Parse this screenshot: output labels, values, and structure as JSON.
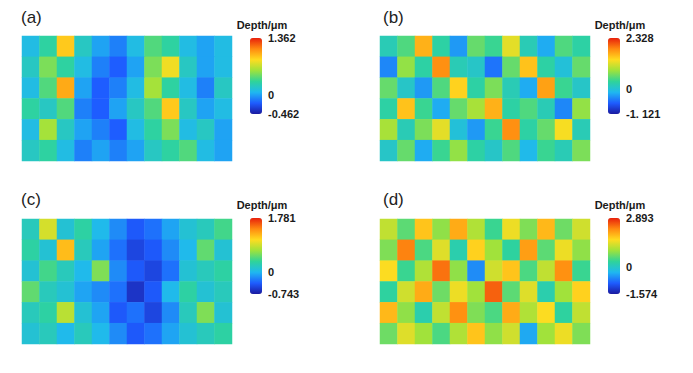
{
  "chart_data": [
    {
      "type": "heatmap",
      "title": "(a)",
      "tick_labels": false,
      "colorbar": {
        "title": "Depth/μm",
        "range": [
          -0.462,
          1.362
        ],
        "ticks": [
          -0.462,
          0,
          1.362
        ]
      },
      "cells": [
        [
          0.1,
          0.3,
          0.9,
          0.2,
          0.0,
          -0.1,
          0.1,
          0.4,
          0.3,
          0.1,
          0.0,
          0.1
        ],
        [
          0.2,
          0.5,
          0.3,
          0.1,
          -0.1,
          -0.2,
          0.0,
          0.5,
          0.8,
          0.2,
          0.0,
          0.1
        ],
        [
          0.1,
          0.4,
          1.0,
          0.0,
          -0.2,
          -0.1,
          0.1,
          0.6,
          0.3,
          0.1,
          -0.1,
          0.2
        ],
        [
          0.3,
          0.2,
          0.4,
          -0.1,
          -0.2,
          0.0,
          0.2,
          0.4,
          0.9,
          0.2,
          0.0,
          0.1
        ],
        [
          0.1,
          0.6,
          0.2,
          0.0,
          -0.1,
          -0.2,
          0.1,
          0.3,
          0.5,
          0.1,
          0.2,
          0.0
        ],
        [
          0.2,
          0.3,
          0.1,
          -0.1,
          0.0,
          -0.1,
          0.0,
          0.2,
          0.3,
          0.4,
          0.1,
          0.0
        ]
      ]
    },
    {
      "type": "heatmap",
      "title": "(b)",
      "tick_labels": false,
      "colorbar": {
        "title": "Depth/μm",
        "range": [
          -1.121,
          2.328
        ],
        "ticks": [
          {
            "value": -1.121,
            "label": "-1. 121"
          },
          0,
          2.328
        ]
      },
      "cells": [
        [
          0.2,
          0.5,
          1.6,
          0.3,
          -0.3,
          0.6,
          0.4,
          1.2,
          0.2,
          -0.2,
          0.5,
          0.3
        ],
        [
          -0.4,
          0.8,
          0.3,
          1.8,
          0.2,
          0.1,
          -0.5,
          0.6,
          1.5,
          0.3,
          0.0,
          0.6
        ],
        [
          0.6,
          0.1,
          -0.3,
          0.5,
          1.4,
          0.3,
          0.7,
          0.2,
          -0.2,
          1.7,
          0.4,
          0.1
        ],
        [
          0.3,
          1.5,
          0.4,
          -0.2,
          0.6,
          0.9,
          1.6,
          0.3,
          0.5,
          0.2,
          -0.4,
          0.8
        ],
        [
          0.9,
          0.2,
          0.7,
          1.2,
          0.0,
          -0.3,
          0.4,
          1.8,
          0.3,
          0.6,
          1.3,
          0.2
        ],
        [
          0.1,
          0.6,
          -0.2,
          0.4,
          0.8,
          0.3,
          0.1,
          0.5,
          -0.1,
          0.4,
          0.2,
          0.7
        ]
      ]
    },
    {
      "type": "heatmap",
      "title": "(c)",
      "tick_labels": false,
      "colorbar": {
        "title": "Depth/μm",
        "range": [
          -0.743,
          1.781
        ],
        "ticks": [
          -0.743,
          0,
          1.781
        ]
      },
      "cells": [
        [
          0.2,
          0.9,
          0.1,
          0.3,
          0.0,
          -0.2,
          -0.4,
          -0.3,
          -0.1,
          0.1,
          0.2,
          0.4
        ],
        [
          0.3,
          0.1,
          1.2,
          0.2,
          -0.1,
          -0.3,
          -0.5,
          -0.4,
          -0.2,
          0.0,
          0.5,
          0.1
        ],
        [
          0.1,
          0.4,
          0.2,
          0.0,
          0.6,
          -0.2,
          -0.4,
          -0.5,
          -0.3,
          0.1,
          0.2,
          0.3
        ],
        [
          0.5,
          0.2,
          0.1,
          -0.1,
          -0.2,
          -0.3,
          -0.6,
          -0.4,
          0.0,
          0.3,
          0.1,
          0.2
        ],
        [
          0.2,
          0.3,
          0.8,
          0.1,
          -0.1,
          -0.4,
          -0.3,
          -0.5,
          -0.2,
          0.2,
          0.6,
          0.1
        ],
        [
          0.1,
          0.2,
          0.0,
          0.2,
          0.0,
          -0.2,
          -0.4,
          -0.3,
          -0.1,
          0.1,
          0.2,
          0.3
        ]
      ]
    },
    {
      "type": "heatmap",
      "title": "(d)",
      "tick_labels": false,
      "colorbar": {
        "title": "Depth/μm",
        "range": [
          -1.574,
          2.893
        ],
        "ticks": [
          -1.574,
          0,
          2.893
        ]
      },
      "cells": [
        [
          1.2,
          0.6,
          1.8,
          0.9,
          2.0,
          1.1,
          0.4,
          1.5,
          0.8,
          1.9,
          0.7,
          1.3
        ],
        [
          0.8,
          2.3,
          0.5,
          1.4,
          0.2,
          1.7,
          1.0,
          0.3,
          2.1,
          0.6,
          1.5,
          0.9
        ],
        [
          1.6,
          0.4,
          1.1,
          2.4,
          0.9,
          -0.6,
          1.3,
          1.8,
          0.5,
          1.2,
          2.2,
          0.4
        ],
        [
          0.3,
          1.3,
          2.0,
          0.7,
          1.5,
          1.0,
          2.5,
          0.6,
          1.4,
          0.2,
          1.0,
          1.7
        ],
        [
          1.9,
          0.9,
          0.2,
          1.2,
          2.2,
          0.8,
          0.5,
          2.0,
          1.1,
          1.6,
          0.3,
          1.2
        ],
        [
          0.7,
          1.4,
          1.0,
          0.5,
          1.1,
          1.8,
          0.9,
          1.3,
          -0.4,
          1.0,
          1.5,
          0.8
        ]
      ]
    }
  ]
}
